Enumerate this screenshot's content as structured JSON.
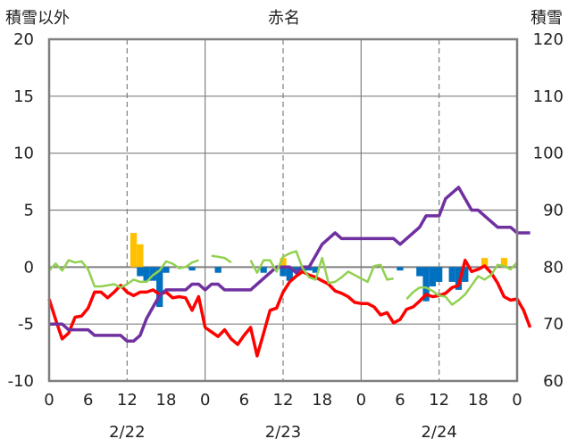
{
  "chart_data": {
    "type": "bar+line",
    "title": "赤名",
    "left_axis": {
      "label": "積雪以外",
      "ylim": [
        -10,
        20
      ],
      "ticks": [
        20,
        15,
        10,
        5,
        0,
        -5,
        -10
      ]
    },
    "right_axis": {
      "label": "積雪",
      "ylim": [
        60,
        120
      ],
      "ticks": [
        120,
        110,
        100,
        90,
        80,
        70,
        60
      ]
    },
    "x_hours": {
      "range": [
        0,
        72
      ],
      "tick_labels": [
        "0",
        "6",
        "12",
        "18",
        "0",
        "6",
        "12",
        "18",
        "0",
        "6",
        "12",
        "18",
        "0"
      ]
    },
    "date_labels": [
      "2/22",
      "2/23",
      "2/24"
    ],
    "grid": "dashed at 12h, solid at day boundaries",
    "colors": {
      "red": "#ff0000",
      "purple": "#7030a0",
      "green": "#92d050",
      "blue": "#0070c0",
      "yellow": "#ffc000"
    },
    "series": [
      {
        "color": "red",
        "axis": "left",
        "kind": "line",
        "values": [
          -2.8,
          -4.6,
          -6.3,
          -5.8,
          -4.4,
          -4.3,
          -3.6,
          -2.2,
          -2.2,
          -2.7,
          -2.2,
          -1.6,
          -2.2,
          -2.5,
          -2.2,
          -2.2,
          -2.0,
          -2.4,
          -2.2,
          -2.7,
          -2.6,
          -2.7,
          -3.8,
          -2.6,
          -5.3,
          -5.7,
          -6.1,
          -5.5,
          -6.3,
          -6.8,
          -6.0,
          -5.3,
          -7.8,
          -5.8,
          -3.8,
          -3.6,
          -2.2,
          -1.3,
          -0.8,
          -0.4,
          -0.7,
          -0.9,
          -1.2,
          -1.5,
          -2.1,
          -2.3,
          -2.6,
          -3.1,
          -3.2,
          -3.2,
          -3.5,
          -4.2,
          -4.0,
          -4.9,
          -4.6,
          -3.7,
          -3.5,
          -3.0,
          -2.4,
          -2.6,
          -2.5,
          -2.3,
          -1.8,
          -1.6,
          0.6,
          -0.4,
          -0.2,
          0.1,
          -0.5,
          -1.4,
          -2.6,
          -2.9,
          -2.8,
          -3.8,
          -5.3
        ]
      },
      {
        "color": "purple",
        "axis": "right",
        "kind": "line",
        "values": [
          70,
          70,
          70,
          69,
          69,
          69,
          69,
          68,
          68,
          68,
          68,
          68,
          67,
          67,
          68,
          71,
          73,
          75,
          76,
          76,
          76,
          76,
          77,
          77,
          76,
          77,
          77,
          76,
          76,
          76,
          76,
          76,
          77,
          78,
          79,
          80,
          80,
          80,
          79,
          80,
          80,
          82,
          84,
          85,
          86,
          85,
          85,
          85,
          85,
          85,
          85,
          85,
          85,
          85,
          84,
          85,
          86,
          87,
          89,
          89,
          89,
          92,
          93,
          94,
          92,
          90,
          90,
          89,
          88,
          87,
          87,
          87,
          86,
          86,
          86
        ]
      },
      {
        "color": "green",
        "axis": "left",
        "kind": "line",
        "values": [
          -0.3,
          0.3,
          -0.3,
          0.6,
          0.4,
          0.5,
          -0.2,
          -1.7,
          -1.7,
          -1.6,
          -1.5,
          -1.8,
          -1.5,
          -1.1,
          -1.3,
          -1.3,
          -0.7,
          -0.3,
          0.5,
          0.3,
          -0.1,
          0.0,
          0.4,
          0.6,
          null,
          1.0,
          0.9,
          0.8,
          0.4,
          null,
          null,
          0.6,
          -0.5,
          0.6,
          0.6,
          -0.4,
          0.9,
          1.2,
          1.4,
          -0.1,
          -0.9,
          -1.1,
          0.8,
          -1.4,
          -1.3,
          -0.9,
          -0.4,
          -0.7,
          -1.0,
          -1.3,
          0.1,
          0.2,
          -1.1,
          -1.0,
          null,
          -2.8,
          -2.2,
          -1.8,
          -1.8,
          -2.1,
          -2.5,
          -2.6,
          -3.3,
          -2.9,
          -2.4,
          -1.6,
          -0.8,
          -1.1,
          -0.7,
          0.2,
          0.1,
          -0.2,
          0.4,
          null,
          null
        ]
      },
      {
        "color": "blue",
        "axis": "left",
        "kind": "bar",
        "values": [
          0,
          0,
          0,
          0,
          0,
          0,
          0,
          0,
          0,
          0,
          0,
          0,
          0,
          0,
          -0.8,
          -1.2,
          -1.2,
          -3.5,
          -0.5,
          0,
          0,
          0,
          -0.3,
          0,
          0,
          0,
          -0.5,
          0,
          0,
          0,
          0,
          0,
          0,
          -0.5,
          0,
          0,
          -0.8,
          -1.2,
          -0.3,
          -0.3,
          -0.3,
          -0.5,
          0,
          0,
          0,
          0,
          0,
          0,
          0,
          0,
          0,
          0,
          0,
          0,
          -0.3,
          0,
          0,
          -0.8,
          -3.0,
          -1.7,
          -1.3,
          0,
          -1.3,
          -2.0,
          -1.3,
          0,
          0,
          0,
          0,
          0,
          0,
          0,
          0,
          0,
          0
        ]
      },
      {
        "color": "yellow",
        "axis": "left",
        "kind": "bar",
        "values": [
          0,
          0,
          0,
          0,
          0,
          0,
          0,
          0,
          0,
          0,
          0,
          0,
          0,
          3.0,
          2.0,
          0,
          0,
          0,
          0,
          0,
          0,
          0,
          0,
          0,
          0,
          0,
          0,
          0,
          0,
          0,
          0,
          0,
          0,
          0,
          0,
          0,
          0.8,
          0,
          0,
          0,
          0,
          0,
          0,
          0,
          0,
          0,
          0,
          0,
          0,
          0,
          0,
          0,
          0,
          0,
          0,
          0,
          0,
          0,
          0,
          0,
          0,
          0,
          0,
          0,
          0,
          0,
          0,
          0.8,
          0,
          0,
          0.8,
          0,
          0,
          0,
          0
        ]
      }
    ]
  }
}
